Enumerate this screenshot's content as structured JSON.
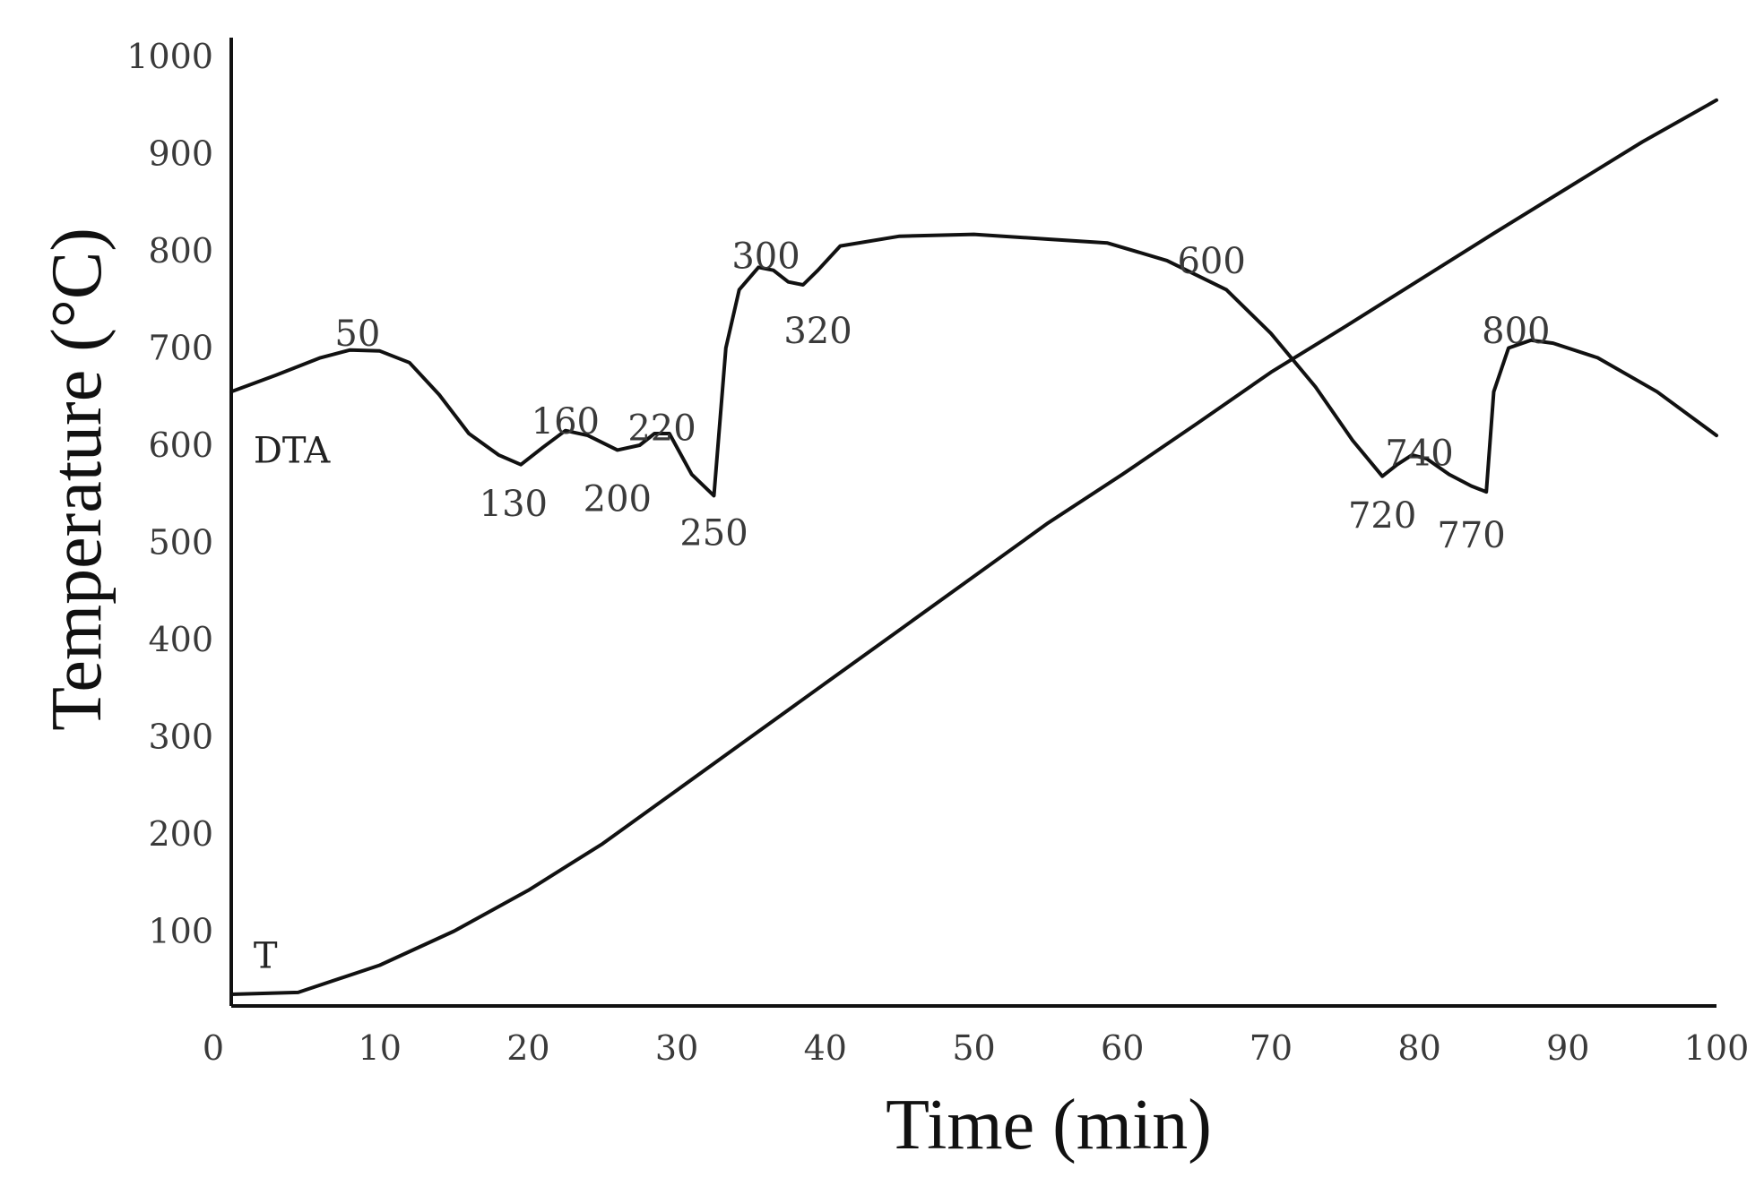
{
  "chart_data": {
    "type": "line",
    "title": "",
    "xlabel": "Time (min)",
    "ylabel": "Temperature (°C)",
    "xlim": [
      0,
      100
    ],
    "ylim": [
      0,
      1000
    ],
    "x_ticks": [
      {
        "value": 0,
        "label": "0"
      },
      {
        "value": 10,
        "label": "10"
      },
      {
        "value": 20,
        "label": "20"
      },
      {
        "value": 30,
        "label": "30"
      },
      {
        "value": 40,
        "label": "40"
      },
      {
        "value": 50,
        "label": "50"
      },
      {
        "value": 60,
        "label": "60"
      },
      {
        "value": 70,
        "label": "70"
      },
      {
        "value": 80,
        "label": "80"
      },
      {
        "value": 90,
        "label": "90"
      },
      {
        "value": 100,
        "label": "100"
      }
    ],
    "y_ticks": [
      {
        "value": 100,
        "label": "100"
      },
      {
        "value": 200,
        "label": "200"
      },
      {
        "value": 300,
        "label": "300"
      },
      {
        "value": 400,
        "label": "400"
      },
      {
        "value": 500,
        "label": "500"
      },
      {
        "value": 600,
        "label": "600"
      },
      {
        "value": 700,
        "label": "700"
      },
      {
        "value": 800,
        "label": "800"
      },
      {
        "value": 900,
        "label": "900"
      },
      {
        "value": 1000,
        "label": "1000"
      }
    ],
    "grid": false,
    "line_color": "#111111",
    "series": [
      {
        "name": "DTA",
        "x": [
          0,
          3,
          6,
          8,
          10,
          12,
          14,
          16,
          18,
          19.5,
          21,
          22.5,
          24,
          26,
          27.5,
          28.5,
          29.5,
          31,
          32.5,
          33.3,
          34.2,
          35.5,
          36.5,
          37.5,
          38.5,
          39.5,
          41,
          45,
          50,
          55,
          59,
          63,
          67,
          70,
          73,
          75.5,
          77.5,
          78.5,
          79.5,
          80.5,
          82,
          83.5,
          84.5,
          85,
          86,
          87.5,
          89,
          92,
          96,
          100
        ],
        "y": [
          655,
          672,
          690,
          698,
          697,
          685,
          652,
          612,
          590,
          580,
          598,
          615,
          610,
          595,
          600,
          612,
          612,
          570,
          548,
          700,
          760,
          783,
          780,
          768,
          765,
          780,
          805,
          815,
          817,
          812,
          808,
          790,
          760,
          715,
          660,
          605,
          568,
          580,
          590,
          586,
          570,
          558,
          552,
          655,
          700,
          708,
          705,
          690,
          655,
          610
        ]
      },
      {
        "name": "T",
        "x": [
          0,
          4.5,
          10,
          15,
          20,
          25,
          30,
          35,
          40,
          45,
          50,
          55,
          60,
          65,
          70,
          75,
          80,
          85,
          90,
          95,
          100
        ],
        "y": [
          35,
          37,
          65,
          100,
          142,
          190,
          245,
          300,
          355,
          410,
          465,
          520,
          570,
          622,
          675,
          722,
          770,
          818,
          865,
          912,
          955
        ]
      }
    ],
    "series_labels": [
      {
        "text": "DTA",
        "x": 1.5,
        "y": 595
      },
      {
        "text": "T",
        "x": 1.5,
        "y": 75
      }
    ],
    "annotations": [
      {
        "text": "50",
        "x": 8.5,
        "y": 715
      },
      {
        "text": "130",
        "x": 19,
        "y": 540
      },
      {
        "text": "160",
        "x": 22.5,
        "y": 625
      },
      {
        "text": "200",
        "x": 26,
        "y": 545
      },
      {
        "text": "220",
        "x": 29,
        "y": 618
      },
      {
        "text": "250",
        "x": 32.5,
        "y": 510
      },
      {
        "text": "300",
        "x": 36,
        "y": 795
      },
      {
        "text": "320",
        "x": 39.5,
        "y": 718
      },
      {
        "text": "600",
        "x": 66,
        "y": 790
      },
      {
        "text": "720",
        "x": 77.5,
        "y": 528
      },
      {
        "text": "740",
        "x": 80,
        "y": 592
      },
      {
        "text": "770",
        "x": 83.5,
        "y": 508
      },
      {
        "text": "800",
        "x": 86.5,
        "y": 718
      }
    ]
  }
}
